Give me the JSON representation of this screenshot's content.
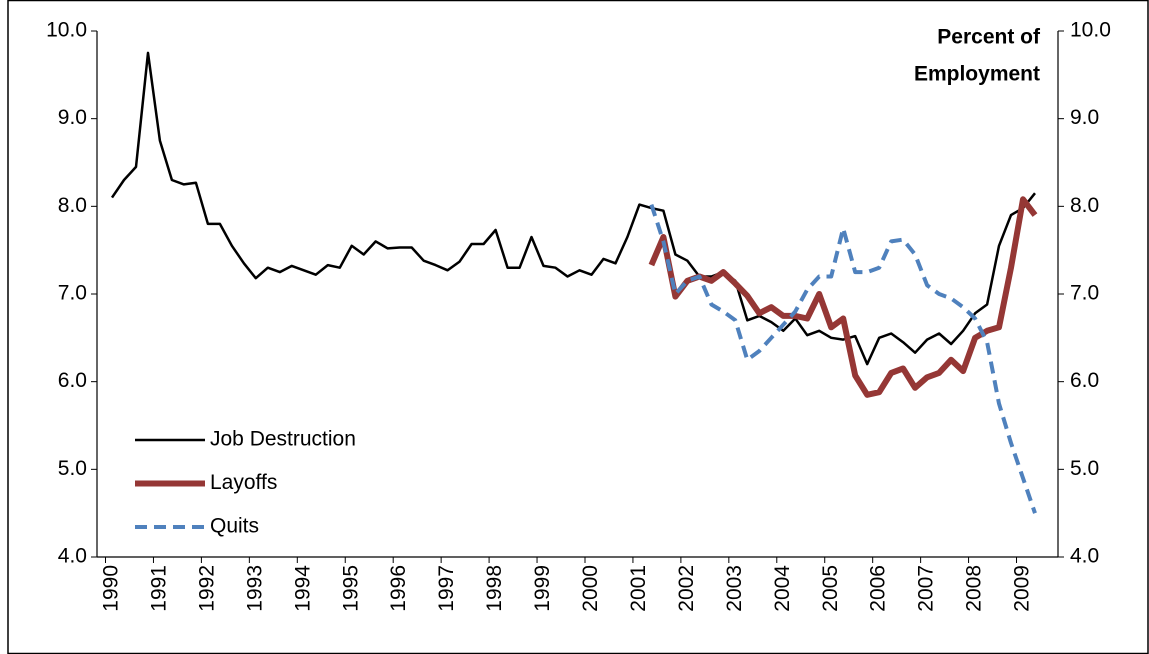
{
  "chart_data": {
    "type": "line",
    "annotation": [
      "Percent of",
      "Employment"
    ],
    "categories": [
      "1990",
      null,
      null,
      null,
      "1991",
      null,
      null,
      null,
      "1992",
      null,
      null,
      null,
      "1993",
      null,
      null,
      null,
      "1994",
      null,
      null,
      null,
      "1995",
      null,
      null,
      null,
      "1996",
      null,
      null,
      null,
      "1997",
      null,
      null,
      null,
      "1998",
      null,
      null,
      null,
      "1999",
      null,
      null,
      null,
      "2000",
      null,
      null,
      null,
      "2001",
      null,
      null,
      null,
      "2002",
      null,
      null,
      null,
      "2003",
      null,
      null,
      null,
      "2004",
      null,
      null,
      null,
      "2005",
      null,
      null,
      null,
      "2006",
      null,
      null,
      null,
      "2007",
      null,
      null,
      null,
      "2008",
      null,
      null,
      null,
      "2009",
      null
    ],
    "series": [
      {
        "name": "Job Destruction",
        "color": "#000000",
        "width": 2.5,
        "dash": false,
        "values": [
          8.1,
          8.3,
          8.45,
          9.75,
          8.75,
          8.3,
          8.25,
          8.27,
          7.8,
          7.8,
          7.55,
          7.35,
          7.18,
          7.3,
          7.25,
          7.32,
          7.27,
          7.22,
          7.33,
          7.3,
          7.55,
          7.45,
          7.6,
          7.52,
          7.53,
          7.53,
          7.38,
          7.33,
          7.27,
          7.37,
          7.57,
          7.57,
          7.73,
          7.3,
          7.3,
          7.65,
          7.32,
          7.3,
          7.2,
          7.27,
          7.22,
          7.4,
          7.35,
          7.65,
          8.02,
          7.98,
          7.95,
          7.45,
          7.38,
          7.2,
          7.2,
          7.25,
          7.15,
          6.7,
          6.75,
          6.68,
          6.58,
          6.72,
          6.53,
          6.58,
          6.5,
          6.48,
          6.52,
          6.2,
          6.5,
          6.55,
          6.45,
          6.33,
          6.48,
          6.55,
          6.43,
          6.58,
          6.78,
          6.88,
          7.55,
          7.9,
          7.98,
          8.15
        ]
      },
      {
        "name": "Layoffs",
        "color": "#953735",
        "width": 6,
        "dash": false,
        "values": [
          null,
          null,
          null,
          null,
          null,
          null,
          null,
          null,
          null,
          null,
          null,
          null,
          null,
          null,
          null,
          null,
          null,
          null,
          null,
          null,
          null,
          null,
          null,
          null,
          null,
          null,
          null,
          null,
          null,
          null,
          null,
          null,
          null,
          null,
          null,
          null,
          null,
          null,
          null,
          null,
          null,
          null,
          null,
          null,
          null,
          7.33,
          7.65,
          6.97,
          7.15,
          7.2,
          7.15,
          7.25,
          7.12,
          6.98,
          6.78,
          6.85,
          6.75,
          6.75,
          6.72,
          7.0,
          6.62,
          6.72,
          6.07,
          5.85,
          5.88,
          6.1,
          6.15,
          5.93,
          6.05,
          6.1,
          6.25,
          6.12,
          6.5,
          6.58,
          6.62,
          7.3,
          8.08,
          7.9
        ]
      },
      {
        "name": "Quits",
        "color": "#4f81bd",
        "width": 4,
        "dash": true,
        "values": [
          null,
          null,
          null,
          null,
          null,
          null,
          null,
          null,
          null,
          null,
          null,
          null,
          null,
          null,
          null,
          null,
          null,
          null,
          null,
          null,
          null,
          null,
          null,
          null,
          null,
          null,
          null,
          null,
          null,
          null,
          null,
          null,
          null,
          null,
          null,
          null,
          null,
          null,
          null,
          null,
          null,
          null,
          null,
          null,
          null,
          8.02,
          7.6,
          7.0,
          7.15,
          7.2,
          6.88,
          6.8,
          6.7,
          6.25,
          6.35,
          6.5,
          6.65,
          6.8,
          7.05,
          7.2,
          7.2,
          7.75,
          7.25,
          7.25,
          7.3,
          7.6,
          7.62,
          7.45,
          7.1,
          7.0,
          6.95,
          6.85,
          6.72,
          6.45,
          5.75,
          5.3,
          4.9,
          4.5
        ]
      }
    ],
    "ylim": [
      4,
      10
    ],
    "yticks": [
      {
        "value": 4,
        "label": "4.0"
      },
      {
        "value": 5,
        "label": "5.0"
      },
      {
        "value": 6,
        "label": "6.0"
      },
      {
        "value": 7,
        "label": "7.0"
      },
      {
        "value": 8,
        "label": "8.0"
      },
      {
        "value": 9,
        "label": "9.0"
      },
      {
        "value": 10,
        "label": "10.0"
      }
    ],
    "y2lim": [
      4,
      10
    ],
    "y2ticks": [
      {
        "value": 4,
        "label": "4.0"
      },
      {
        "value": 5,
        "label": "5.0"
      },
      {
        "value": 6,
        "label": "6.0"
      },
      {
        "value": 7,
        "label": "7.0"
      },
      {
        "value": 8,
        "label": "8.0"
      },
      {
        "value": 9,
        "label": "9.0"
      },
      {
        "value": 10,
        "label": "10.0"
      }
    ],
    "grid": false,
    "legend": "lower-left"
  }
}
